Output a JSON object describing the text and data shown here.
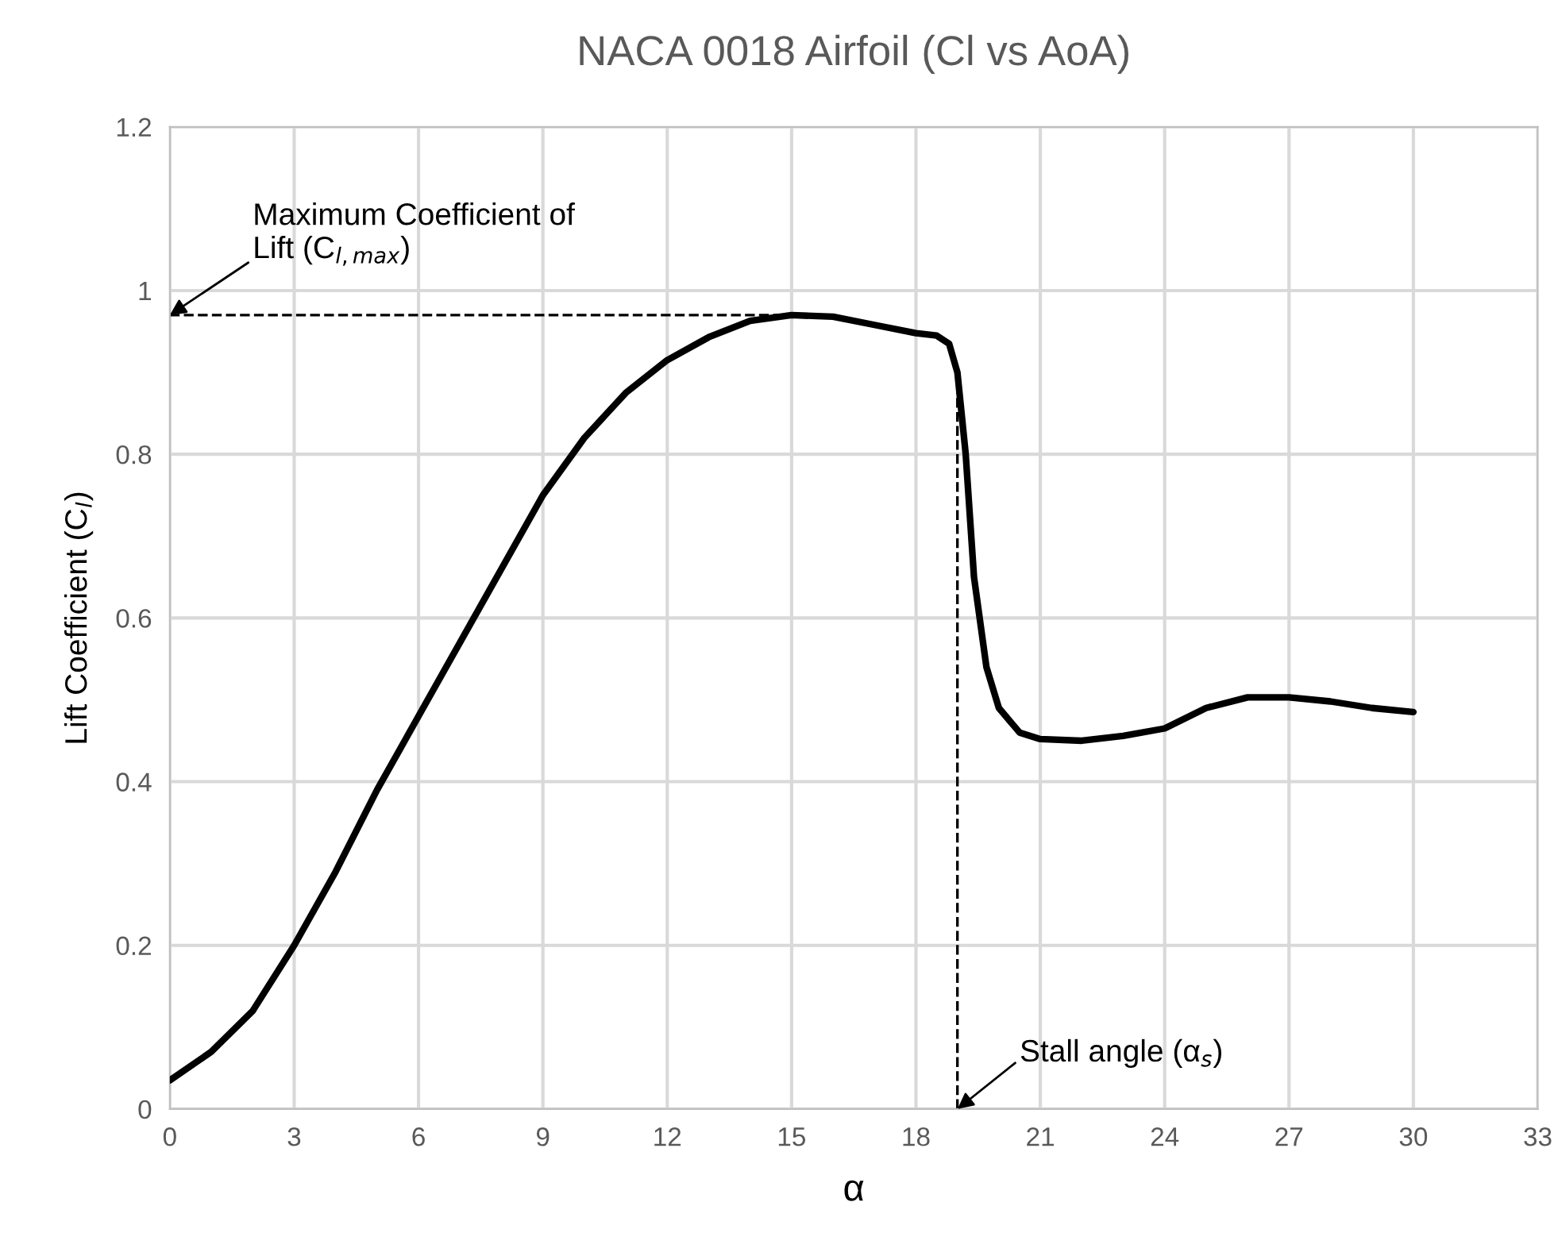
{
  "chart_data": {
    "type": "line",
    "title": "NACA 0018 Airfoil (Cl vs AoA)",
    "xlabel": "α",
    "ylabel": "Lift Coefficient (C$_{l}$)",
    "series": [
      {
        "color": "#000000",
        "x": [
          0,
          1,
          2,
          3,
          4,
          5,
          6,
          7,
          8,
          9,
          10,
          11,
          12,
          13,
          14,
          15,
          16,
          17,
          18,
          18.5,
          18.8,
          19,
          19.2,
          19.4,
          19.7,
          20,
          20.5,
          21,
          22,
          23,
          24,
          25,
          26,
          27,
          28,
          29,
          30
        ],
        "values": [
          0.035,
          0.07,
          0.12,
          0.2,
          0.29,
          0.39,
          0.48,
          0.57,
          0.66,
          0.75,
          0.82,
          0.875,
          0.915,
          0.943,
          0.963,
          0.97,
          0.968,
          0.958,
          0.948,
          0.945,
          0.935,
          0.9,
          0.8,
          0.65,
          0.54,
          0.49,
          0.46,
          0.452,
          0.45,
          0.456,
          0.465,
          0.49,
          0.503,
          0.503,
          0.498,
          0.49,
          0.485
        ]
      }
    ],
    "xlim": [
      0,
      33
    ],
    "xticks": [
      0,
      3,
      6,
      9,
      12,
      15,
      18,
      21,
      24,
      27,
      30,
      33
    ],
    "ylim": [
      0,
      1.2
    ],
    "yticks": [
      0,
      0.2,
      0.4,
      0.6,
      0.8,
      1,
      1.2
    ],
    "grid": true,
    "line_style": "solid",
    "marker": "none",
    "ref_lines": [
      {
        "axis": "y",
        "value": 0.97,
        "label": "Maximum Coefficient of\nLift (C$_{l,max}$)",
        "line_style": "dashed",
        "color": "#000000"
      },
      {
        "axis": "x",
        "value": 19,
        "label": "Stall angle (α$_{s}$)",
        "line_style": "dashed",
        "color": "#000000"
      }
    ]
  }
}
